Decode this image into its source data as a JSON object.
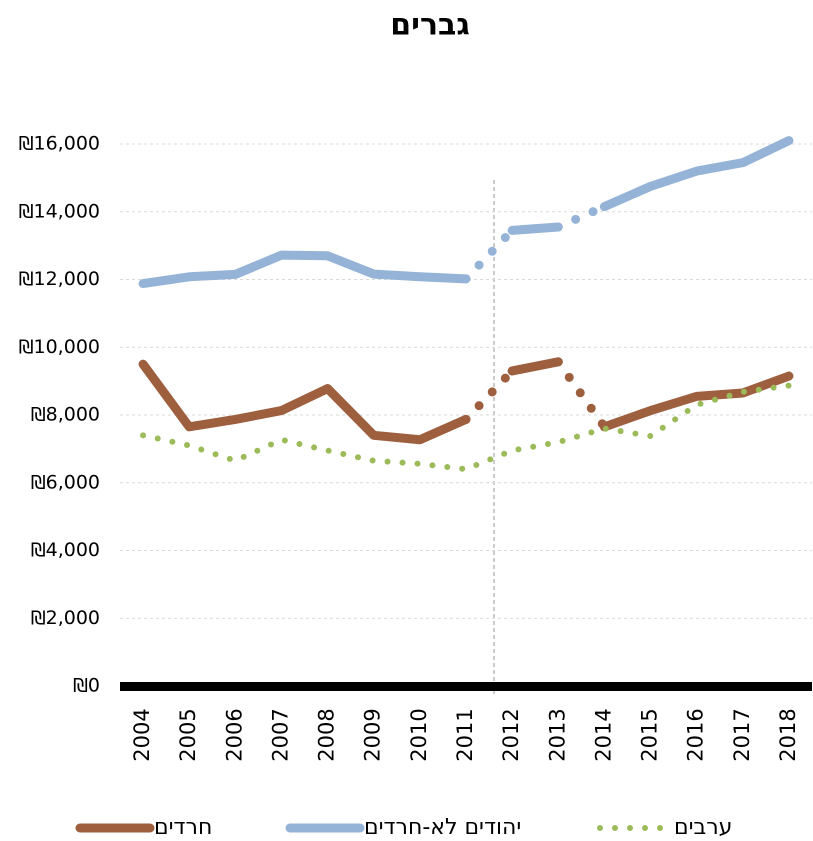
{
  "chart_data": {
    "type": "line",
    "title": "גברים",
    "categories": [
      "2004",
      "2005",
      "2006",
      "2007",
      "2008",
      "2009",
      "2010",
      "2011",
      "2012",
      "2013",
      "2014",
      "2015",
      "2016",
      "2017",
      "2018"
    ],
    "series": [
      {
        "name": "חרדים",
        "color": "#9e5f3f",
        "style": "solid",
        "values": [
          9500,
          7650,
          7870,
          8130,
          8780,
          7400,
          7270,
          7870,
          9300,
          9570,
          7650,
          8130,
          8550,
          8650,
          9150
        ]
      },
      {
        "name": "יהודים לא-חרדים",
        "color": "#95b3d7",
        "style": "solid",
        "values": [
          11880,
          12080,
          12150,
          12720,
          12700,
          12160,
          12080,
          12020,
          13450,
          13550,
          14150,
          14750,
          15200,
          15450,
          16100
        ]
      },
      {
        "name": "ערבים",
        "color": "#9bbb59",
        "style": "dotted",
        "values": [
          7400,
          7100,
          6650,
          7270,
          6950,
          6650,
          6560,
          6400,
          6950,
          7200,
          7600,
          7380,
          8300,
          8680,
          8870
        ]
      }
    ],
    "dotted_spans": [
      [
        "2011",
        "2012"
      ],
      [
        "2013",
        "2014"
      ]
    ],
    "ylim": [
      0,
      16000
    ],
    "yticks": [
      {
        "value": 0,
        "label": "₪0"
      },
      {
        "value": 2000,
        "label": "₪2,000"
      },
      {
        "value": 4000,
        "label": "₪4,000"
      },
      {
        "value": 6000,
        "label": "₪6,000"
      },
      {
        "value": 8000,
        "label": "₪8,000"
      },
      {
        "value": 10000,
        "label": "₪10,000"
      },
      {
        "value": 12000,
        "label": "₪12,000"
      },
      {
        "value": 14000,
        "label": "₪14,000"
      },
      {
        "value": 16000,
        "label": "₪16,000"
      }
    ],
    "grid": true
  }
}
